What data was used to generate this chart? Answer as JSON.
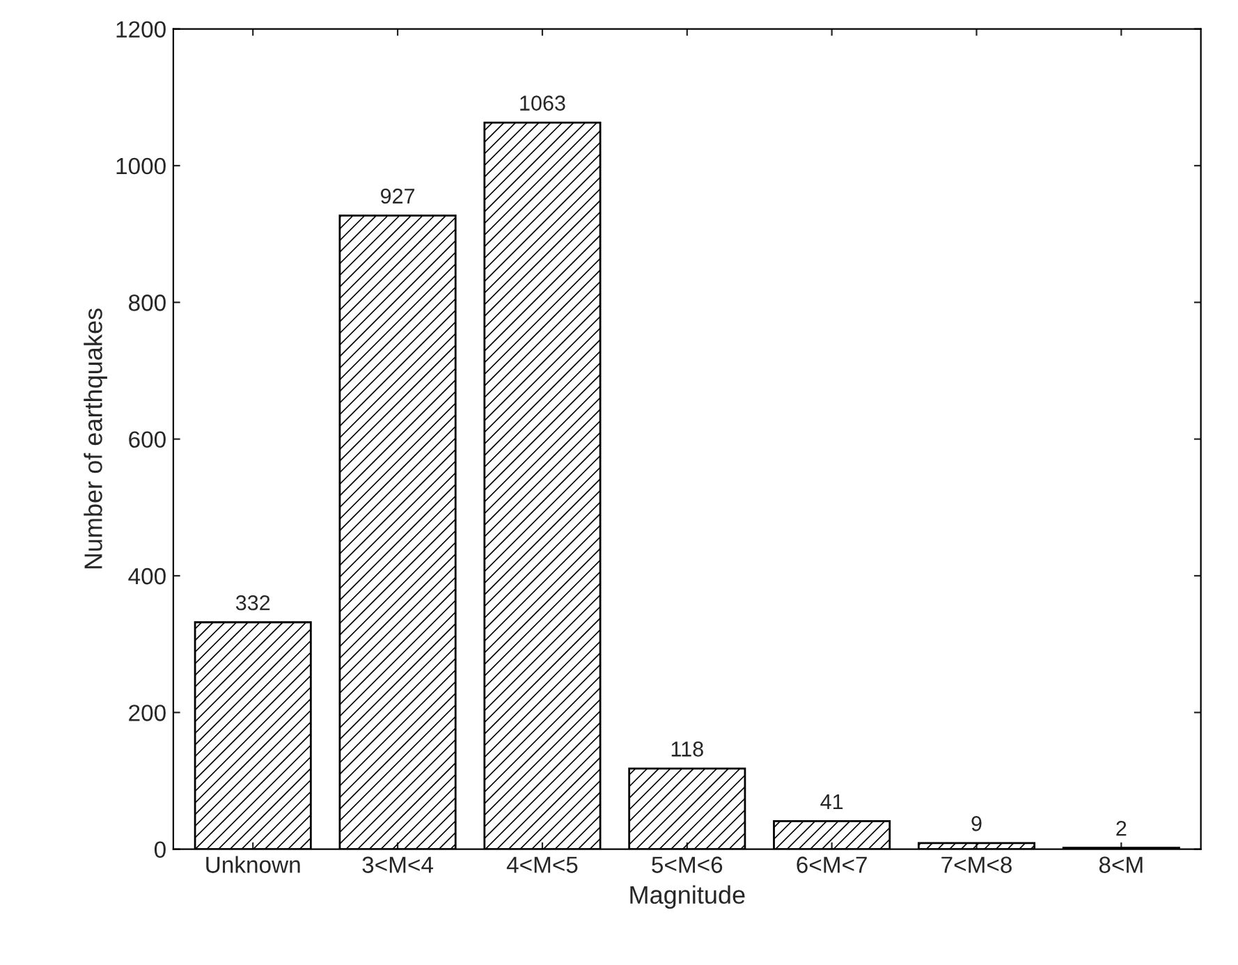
{
  "chart_data": {
    "type": "bar",
    "xlabel": "Magnitude",
    "ylabel": "Number of earthquakes",
    "categories": [
      "Unknown",
      "3<M<4",
      "4<M<5",
      "5<M<6",
      "6<M<7",
      "7<M<8",
      "8<M"
    ],
    "values": [
      332,
      927,
      1063,
      118,
      41,
      9,
      2
    ],
    "color": "#000000",
    "ylim": [
      0,
      1200
    ],
    "yticks": [
      0,
      200,
      400,
      600,
      800,
      1000,
      1200
    ],
    "data_labels": true,
    "grid": false,
    "legend": false
  }
}
